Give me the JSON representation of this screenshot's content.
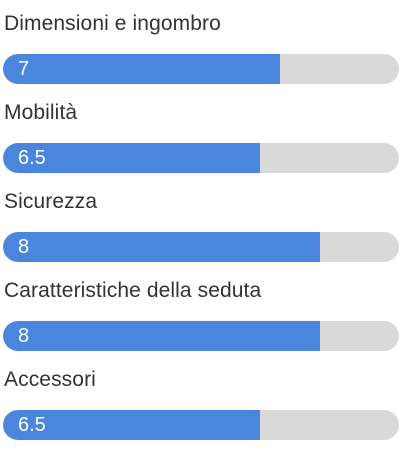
{
  "colors": {
    "fill": "#4a86dd",
    "track": "#d9d9d9",
    "label_text": "#333333",
    "value_text": "#ffffff"
  },
  "scale_max": 10,
  "ratings": [
    {
      "label": "Dimensioni e ingombro",
      "value": "7",
      "score": 7
    },
    {
      "label": "Mobilità",
      "value": "6.5",
      "score": 6.5
    },
    {
      "label": "Sicurezza",
      "value": "8",
      "score": 8
    },
    {
      "label": "Caratteristiche della seduta",
      "value": "8",
      "score": 8
    },
    {
      "label": "Accessori",
      "value": "6.5",
      "score": 6.5
    }
  ]
}
